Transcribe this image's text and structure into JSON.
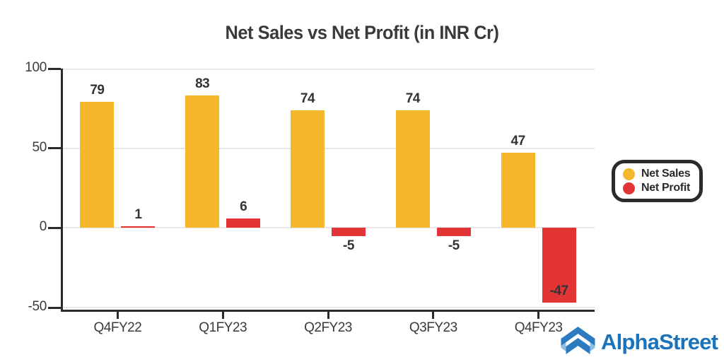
{
  "chart_data": {
    "type": "bar",
    "title": "Net Sales vs Net Profit (in INR Cr)",
    "categories": [
      "Q4FY22",
      "Q1FY23",
      "Q2FY23",
      "Q3FY23",
      "Q4FY23"
    ],
    "series": [
      {
        "name": "Net Sales",
        "color": "#F5B82D",
        "values": [
          79,
          83,
          74,
          74,
          47
        ]
      },
      {
        "name": "Net Profit",
        "color": "#E23434",
        "values": [
          1,
          6,
          -5,
          -5,
          -47
        ]
      }
    ],
    "ylim": [
      -50,
      100
    ],
    "yticks": [
      100,
      50,
      0,
      -50
    ],
    "grid": true,
    "legend_position": "middle-right",
    "value_labels": true
  },
  "branding": {
    "name": "AlphaStreet",
    "text_color": "#1B74BB",
    "icon_colors": {
      "dark": "#2B7BBE",
      "light": "#8FBEE0"
    }
  },
  "colors": {
    "background": "#FFFFFF",
    "axis": "#2B2B2B",
    "grid": "#E7E7E7",
    "text": "#3A3A3A",
    "value_label": "#333333"
  }
}
